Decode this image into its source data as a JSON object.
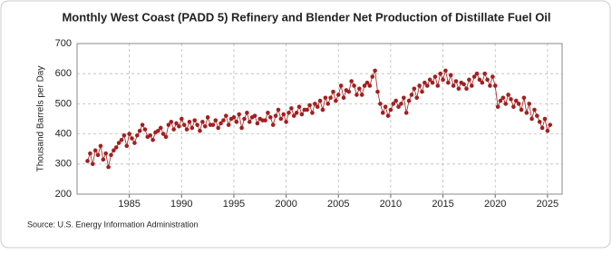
{
  "chart_data": {
    "type": "line",
    "title": "Monthly West Coast (PADD 5) Refinery and Blender Net Production of Distillate Fuel Oil",
    "ylabel": "Thousand Barrels per Day",
    "source": "Source: U.S. Energy Information Administration",
    "color": "#a31f1f",
    "grid": true,
    "xlim": [
      1980,
      2026.4
    ],
    "xticks": [
      1985,
      1990,
      1995,
      2000,
      2005,
      2010,
      2015,
      2020,
      2025
    ],
    "ylim": [
      200,
      700
    ],
    "yticks": [
      200,
      300,
      400,
      500,
      600,
      700
    ],
    "x": [
      1981,
      1981.25,
      1981.5,
      1981.75,
      1982,
      1982.25,
      1982.5,
      1982.75,
      1983,
      1983.25,
      1983.5,
      1983.75,
      1984,
      1984.25,
      1984.5,
      1984.75,
      1985,
      1985.25,
      1985.5,
      1985.75,
      1986,
      1986.25,
      1986.5,
      1986.75,
      1987,
      1987.25,
      1987.5,
      1987.75,
      1988,
      1988.25,
      1988.5,
      1988.75,
      1989,
      1989.25,
      1989.5,
      1989.75,
      1990,
      1990.25,
      1990.5,
      1990.75,
      1991,
      1991.25,
      1991.5,
      1991.75,
      1992,
      1992.25,
      1992.5,
      1992.75,
      1993,
      1993.25,
      1993.5,
      1993.75,
      1994,
      1994.25,
      1994.5,
      1994.75,
      1995,
      1995.25,
      1995.5,
      1995.75,
      1996,
      1996.25,
      1996.5,
      1996.75,
      1997,
      1997.25,
      1997.5,
      1997.75,
      1998,
      1998.25,
      1998.5,
      1998.75,
      1999,
      1999.25,
      1999.5,
      1999.75,
      2000,
      2000.25,
      2000.5,
      2000.75,
      2001,
      2001.25,
      2001.5,
      2001.75,
      2002,
      2002.25,
      2002.5,
      2002.75,
      2003,
      2003.25,
      2003.5,
      2003.75,
      2004,
      2004.25,
      2004.5,
      2004.75,
      2005,
      2005.25,
      2005.5,
      2005.75,
      2006,
      2006.25,
      2006.5,
      2006.75,
      2007,
      2007.25,
      2007.5,
      2007.75,
      2008,
      2008.25,
      2008.5,
      2008.75,
      2009,
      2009.25,
      2009.5,
      2009.75,
      2010,
      2010.25,
      2010.5,
      2010.75,
      2011,
      2011.25,
      2011.5,
      2011.75,
      2012,
      2012.25,
      2012.5,
      2012.75,
      2013,
      2013.25,
      2013.5,
      2013.75,
      2014,
      2014.25,
      2014.5,
      2014.75,
      2015,
      2015.25,
      2015.5,
      2015.75,
      2016,
      2016.25,
      2016.5,
      2016.75,
      2017,
      2017.25,
      2017.5,
      2017.75,
      2018,
      2018.25,
      2018.5,
      2018.75,
      2019,
      2019.25,
      2019.5,
      2019.75,
      2020,
      2020.25,
      2020.5,
      2020.75,
      2021,
      2021.25,
      2021.5,
      2021.75,
      2022,
      2022.25,
      2022.5,
      2022.75,
      2023,
      2023.25,
      2023.5,
      2023.75,
      2024,
      2024.25,
      2024.5,
      2024.75,
      2025,
      2025.25
    ],
    "values": [
      310,
      335,
      300,
      345,
      330,
      360,
      315,
      335,
      290,
      330,
      345,
      355,
      370,
      380,
      395,
      360,
      400,
      385,
      370,
      395,
      410,
      430,
      415,
      390,
      395,
      380,
      405,
      410,
      420,
      400,
      390,
      430,
      440,
      415,
      435,
      425,
      450,
      430,
      415,
      440,
      420,
      445,
      430,
      410,
      440,
      425,
      455,
      430,
      430,
      445,
      420,
      435,
      445,
      460,
      430,
      450,
      455,
      440,
      465,
      420,
      450,
      470,
      440,
      455,
      460,
      435,
      450,
      445,
      445,
      470,
      455,
      430,
      460,
      480,
      450,
      465,
      440,
      470,
      485,
      460,
      470,
      490,
      465,
      480,
      480,
      495,
      470,
      500,
      490,
      510,
      480,
      520,
      500,
      520,
      540,
      510,
      530,
      560,
      520,
      545,
      540,
      575,
      560,
      530,
      550,
      530,
      560,
      570,
      560,
      590,
      610,
      540,
      500,
      470,
      490,
      460,
      480,
      500,
      510,
      490,
      500,
      520,
      470,
      510,
      530,
      550,
      520,
      560,
      540,
      570,
      560,
      580,
      570,
      590,
      560,
      600,
      580,
      610,
      570,
      595,
      560,
      575,
      550,
      570,
      565,
      550,
      580,
      560,
      590,
      600,
      580,
      570,
      600,
      580,
      560,
      590,
      560,
      490,
      510,
      520,
      500,
      530,
      515,
      490,
      510,
      500,
      480,
      520,
      470,
      500,
      450,
      480,
      460,
      440,
      420,
      450,
      410,
      430
    ]
  }
}
